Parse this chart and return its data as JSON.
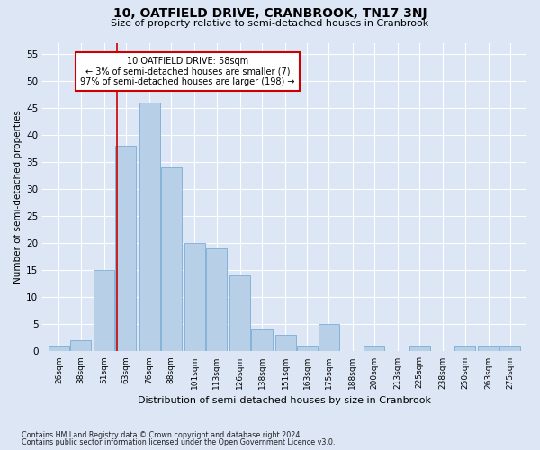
{
  "title": "10, OATFIELD DRIVE, CRANBROOK, TN17 3NJ",
  "subtitle": "Size of property relative to semi-detached houses in Cranbrook",
  "xlabel": "Distribution of semi-detached houses by size in Cranbrook",
  "ylabel": "Number of semi-detached properties",
  "footer_line1": "Contains HM Land Registry data © Crown copyright and database right 2024.",
  "footer_line2": "Contains public sector information licensed under the Open Government Licence v3.0.",
  "bins": [
    26,
    38,
    51,
    63,
    76,
    88,
    101,
    113,
    126,
    138,
    151,
    163,
    175,
    188,
    200,
    213,
    225,
    238,
    250,
    263,
    275
  ],
  "values": [
    1,
    2,
    15,
    38,
    46,
    34,
    20,
    19,
    14,
    4,
    3,
    1,
    5,
    0,
    1,
    0,
    1,
    0,
    1,
    1,
    1
  ],
  "bar_color": "#b8cfe8",
  "bar_edge_color": "#7aadd4",
  "background_color": "#dce6f5",
  "grid_color": "#ffffff",
  "red_line_x": 58,
  "annotation_title": "10 OATFIELD DRIVE: 58sqm",
  "annotation_line1": "← 3% of semi-detached houses are smaller (7)",
  "annotation_line2": "97% of semi-detached houses are larger (198) →",
  "annotation_box_color": "#ffffff",
  "annotation_border_color": "#cc0000",
  "ylim": [
    0,
    57
  ],
  "yticks": [
    0,
    5,
    10,
    15,
    20,
    25,
    30,
    35,
    40,
    45,
    50,
    55
  ]
}
